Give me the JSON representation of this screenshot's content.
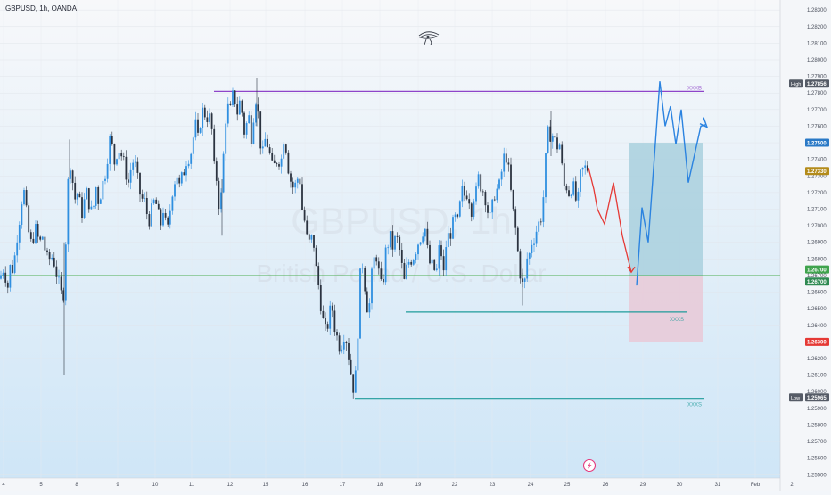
{
  "header": {
    "title": "GBPUSD, 1h, OANDA"
  },
  "watermark": {
    "symbol": "GBPUSD, 1h",
    "description": "British Pound / U.S. Dollar"
  },
  "colors": {
    "up": "#2f8fe0",
    "down": "#2b3340",
    "resistance": "#8e44c9",
    "support": "#1f9b9a",
    "green_line": "#4caf50",
    "target_zone": "#a9d0de",
    "stop_zone": "#e8cbd8",
    "projection_blue": "#2b83e0",
    "projection_red": "#e53935",
    "price_tag_blue": "#2a79c6",
    "price_tag_gold": "#b38b1a",
    "price_tag_green": "#3fa34d",
    "price_tag_red": "#e53935",
    "price_tag_dark": "#555b66"
  },
  "chart_data": {
    "type": "candlestick",
    "title": "GBPUSD, 1h, OANDA",
    "x_ticks": [
      "4",
      "5",
      "8",
      "9",
      "10",
      "11",
      "12",
      "15",
      "16",
      "17",
      "18",
      "19",
      "22",
      "23",
      "24",
      "25",
      "26",
      "29",
      "30",
      "31",
      "Feb",
      "2"
    ],
    "y_ticks": [
      "1.28300",
      "1.28200",
      "1.28100",
      "1.28000",
      "1.27900",
      "1.27800",
      "1.27700",
      "1.27600",
      "1.27500",
      "1.27400",
      "1.27300",
      "1.27200",
      "1.27100",
      "1.27000",
      "1.26900",
      "1.26800",
      "1.26700",
      "1.26600",
      "1.26500",
      "1.26400",
      "1.26300",
      "1.26200",
      "1.26100",
      "1.26000",
      "1.25900",
      "1.25800",
      "1.25700",
      "1.25600",
      "1.25500"
    ],
    "ylim": [
      1.2548,
      1.2836
    ],
    "price_path": [
      [
        0,
        1.2668
      ],
      [
        3,
        1.2675
      ],
      [
        6,
        1.267
      ],
      [
        9,
        1.2663
      ],
      [
        12,
        1.2678
      ],
      [
        15,
        1.2672
      ],
      [
        18,
        1.269
      ],
      [
        21,
        1.27
      ],
      [
        24,
        1.2715
      ],
      [
        27,
        1.272
      ],
      [
        30,
        1.2706
      ],
      [
        33,
        1.2692
      ],
      [
        36,
        1.2688
      ],
      [
        39,
        1.27
      ],
      [
        42,
        1.2693
      ],
      [
        45,
        1.269
      ],
      [
        48,
        1.2694
      ],
      [
        51,
        1.2684
      ],
      [
        54,
        1.2678
      ],
      [
        57,
        1.2682
      ],
      [
        60,
        1.268
      ],
      [
        63,
        1.2672
      ],
      [
        66,
        1.2665
      ],
      [
        69,
        1.2658
      ],
      [
        72,
        1.266
      ],
      [
        75,
        1.2712
      ],
      [
        78,
        1.2742
      ],
      [
        81,
        1.2729
      ],
      [
        84,
        1.2716
      ],
      [
        87,
        1.272
      ],
      [
        90,
        1.2712
      ],
      [
        93,
        1.2706
      ],
      [
        96,
        1.2722
      ],
      [
        99,
        1.2716
      ],
      [
        102,
        1.2708
      ],
      [
        105,
        1.2712
      ],
      [
        108,
        1.2725
      ],
      [
        111,
        1.2712
      ],
      [
        114,
        1.2724
      ],
      [
        117,
        1.2728
      ],
      [
        120,
        1.2739
      ],
      [
        123,
        1.2752
      ],
      [
        126,
        1.2747
      ],
      [
        129,
        1.2736
      ],
      [
        132,
        1.2748
      ],
      [
        135,
        1.2744
      ],
      [
        138,
        1.274
      ],
      [
        141,
        1.2732
      ],
      [
        144,
        1.2726
      ],
      [
        147,
        1.2735
      ],
      [
        150,
        1.274
      ],
      [
        153,
        1.2733
      ],
      [
        156,
        1.2721
      ],
      [
        159,
        1.2716
      ],
      [
        162,
        1.2715
      ],
      [
        165,
        1.2707
      ],
      [
        168,
        1.2703
      ],
      [
        171,
        1.2712
      ],
      [
        174,
        1.2716
      ],
      [
        177,
        1.2708
      ],
      [
        180,
        1.27
      ],
      [
        183,
        1.271
      ],
      [
        186,
        1.27
      ],
      [
        189,
        1.2697
      ],
      [
        192,
        1.2718
      ],
      [
        195,
        1.2725
      ],
      [
        198,
        1.2732
      ],
      [
        201,
        1.2723
      ],
      [
        204,
        1.2729
      ],
      [
        207,
        1.2734
      ],
      [
        210,
        1.2742
      ],
      [
        213,
        1.2741
      ],
      [
        216,
        1.275
      ],
      [
        219,
        1.2762
      ],
      [
        222,
        1.2752
      ],
      [
        225,
        1.2764
      ],
      [
        228,
        1.2771
      ],
      [
        231,
        1.2765
      ],
      [
        234,
        1.2766
      ],
      [
        237,
        1.2763
      ],
      [
        240,
        1.2735
      ],
      [
        243,
        1.2728
      ],
      [
        246,
        1.271
      ],
      [
        249,
        1.2722
      ],
      [
        252,
        1.276
      ],
      [
        255,
        1.2772
      ],
      [
        258,
        1.2768
      ],
      [
        261,
        1.2778
      ],
      [
        264,
        1.2775
      ],
      [
        267,
        1.2766
      ],
      [
        270,
        1.278
      ],
      [
        273,
        1.2755
      ],
      [
        276,
        1.276
      ],
      [
        279,
        1.2766
      ],
      [
        282,
        1.2753
      ],
      [
        285,
        1.277
      ],
      [
        288,
        1.278
      ],
      [
        291,
        1.2756
      ],
      [
        294,
        1.274
      ],
      [
        297,
        1.2752
      ],
      [
        300,
        1.2749
      ],
      [
        303,
        1.2742
      ],
      [
        306,
        1.2733
      ],
      [
        309,
        1.2738
      ],
      [
        312,
        1.2741
      ],
      [
        315,
        1.2737
      ],
      [
        318,
        1.2753
      ],
      [
        321,
        1.2747
      ],
      [
        324,
        1.2732
      ],
      [
        327,
        1.2725
      ],
      [
        330,
        1.2722
      ],
      [
        333,
        1.2728
      ],
      [
        336,
        1.273
      ],
      [
        339,
        1.271
      ],
      [
        342,
        1.2702
      ],
      [
        345,
        1.2689
      ],
      [
        348,
        1.269
      ],
      [
        351,
        1.2695
      ],
      [
        354,
        1.2676
      ],
      [
        357,
        1.2665
      ],
      [
        360,
        1.2652
      ],
      [
        363,
        1.264
      ],
      [
        366,
        1.2635
      ],
      [
        369,
        1.2645
      ],
      [
        372,
        1.2653
      ],
      [
        375,
        1.264
      ],
      [
        378,
        1.2633
      ],
      [
        381,
        1.2627
      ],
      [
        384,
        1.263
      ],
      [
        387,
        1.2637
      ],
      [
        390,
        1.2625
      ],
      [
        393,
        1.2614
      ],
      [
        396,
        1.2602
      ],
      [
        399,
        1.261
      ],
      [
        402,
        1.2643
      ],
      [
        405,
        1.2683
      ],
      [
        408,
        1.2672
      ],
      [
        411,
        1.2652
      ],
      [
        414,
        1.265
      ],
      [
        417,
        1.267
      ],
      [
        420,
        1.2681
      ],
      [
        423,
        1.2682
      ],
      [
        426,
        1.2665
      ],
      [
        429,
        1.2662
      ],
      [
        432,
        1.2683
      ],
      [
        435,
        1.2689
      ],
      [
        438,
        1.2693
      ],
      [
        441,
        1.2686
      ],
      [
        444,
        1.2694
      ],
      [
        447,
        1.2689
      ],
      [
        450,
        1.2679
      ],
      [
        453,
        1.2665
      ],
      [
        456,
        1.2674
      ],
      [
        459,
        1.2679
      ],
      [
        462,
        1.268
      ],
      [
        465,
        1.2683
      ],
      [
        468,
        1.2689
      ],
      [
        471,
        1.2692
      ],
      [
        474,
        1.2697
      ],
      [
        477,
        1.2698
      ],
      [
        480,
        1.2682
      ],
      [
        483,
        1.2675
      ],
      [
        486,
        1.2677
      ],
      [
        489,
        1.2668
      ],
      [
        492,
        1.2686
      ],
      [
        495,
        1.2683
      ],
      [
        498,
        1.2669
      ],
      [
        501,
        1.2695
      ],
      [
        504,
        1.2693
      ],
      [
        507,
        1.2699
      ],
      [
        510,
        1.2705
      ],
      [
        513,
        1.2701
      ],
      [
        516,
        1.2713
      ],
      [
        519,
        1.2723
      ],
      [
        522,
        1.2716
      ],
      [
        525,
        1.2723
      ],
      [
        528,
        1.2707
      ],
      [
        531,
        1.2718
      ],
      [
        534,
        1.272
      ],
      [
        537,
        1.273
      ],
      [
        540,
        1.2722
      ],
      [
        543,
        1.2721
      ],
      [
        546,
        1.2712
      ],
      [
        549,
        1.2703
      ],
      [
        552,
        1.2711
      ],
      [
        555,
        1.272
      ],
      [
        558,
        1.2722
      ],
      [
        561,
        1.2725
      ],
      [
        564,
        1.2739
      ],
      [
        567,
        1.2744
      ],
      [
        570,
        1.2735
      ],
      [
        573,
        1.272
      ],
      [
        576,
        1.2706
      ],
      [
        579,
        1.2695
      ],
      [
        582,
        1.2677
      ],
      [
        585,
        1.2665
      ],
      [
        588,
        1.2663
      ],
      [
        591,
        1.268
      ],
      [
        594,
        1.2683
      ],
      [
        597,
        1.2692
      ],
      [
        600,
        1.2693
      ],
      [
        603,
        1.2701
      ],
      [
        606,
        1.2702
      ],
      [
        609,
        1.2714
      ],
      [
        612,
        1.274
      ],
      [
        615,
        1.2758
      ],
      [
        618,
        1.2754
      ],
      [
        621,
        1.2755
      ],
      [
        624,
        1.2746
      ],
      [
        627,
        1.2752
      ],
      [
        630,
        1.2736
      ],
      [
        633,
        1.2723
      ],
      [
        636,
        1.2724
      ],
      [
        639,
        1.2718
      ],
      [
        642,
        1.2727
      ],
      [
        645,
        1.2716
      ],
      [
        648,
        1.2714
      ],
      [
        651,
        1.273
      ],
      [
        654,
        1.2734
      ],
      [
        657,
        1.2735
      ],
      [
        660,
        1.2734
      ]
    ],
    "annotations": {
      "resistance_line": {
        "label": "XXXB",
        "price": 1.2781,
        "x_start": 240,
        "x_end": 790
      },
      "support_line_1": {
        "label": "XXXS",
        "price": 1.2648,
        "x_start": 455,
        "x_end": 770
      },
      "support_line_2": {
        "label": "XXXS",
        "price": 1.2596,
        "x_start": 398,
        "x_end": 790
      },
      "green_line": {
        "price": 1.267
      },
      "long_position": {
        "x_start": 706,
        "x_end": 788,
        "target_price": 1.275,
        "entry_price": 1.267,
        "stop_price": 1.263
      },
      "red_projection": [
        [
          660,
          1.2735
        ],
        [
          666,
          1.2722
        ],
        [
          670,
          1.271
        ],
        [
          678,
          1.2701
        ],
        [
          688,
          1.2726
        ],
        [
          698,
          1.2694
        ],
        [
          708,
          1.2672
        ]
      ],
      "blue_projection": [
        [
          714,
          1.2664
        ],
        [
          720,
          1.2711
        ],
        [
          727,
          1.269
        ],
        [
          740,
          1.2787
        ],
        [
          746,
          1.276
        ],
        [
          752,
          1.2772
        ],
        [
          758,
          1.2749
        ],
        [
          764,
          1.277
        ],
        [
          772,
          1.2726
        ],
        [
          786,
          1.276
        ],
        [
          792,
          1.2761
        ]
      ]
    }
  },
  "price_scale": {
    "high_tag": {
      "label": "High",
      "value": "1.27856"
    },
    "low_tag": {
      "label": "Low",
      "value": "1.25965"
    },
    "tags": [
      {
        "value": "1.27500",
        "price": 1.275,
        "color": "#2a79c6"
      },
      {
        "value": "1.27330",
        "price": 1.2733,
        "color": "#b38b1a"
      },
      {
        "value": "1.26700",
        "price": 1.26715,
        "color": "#3fa34d"
      },
      {
        "value": "1.26700",
        "price": 1.26685,
        "color": "#2f8a52"
      },
      {
        "value": "1.26300",
        "price": 1.263,
        "color": "#e53935"
      }
    ]
  }
}
